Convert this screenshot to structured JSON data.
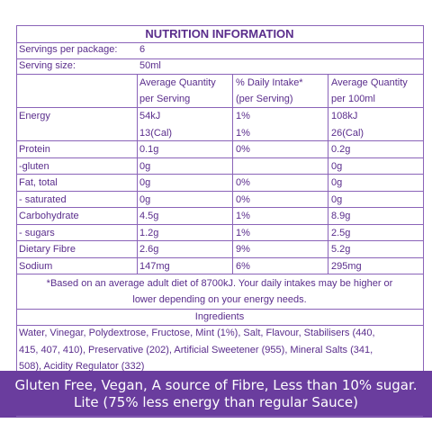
{
  "header": {
    "title": "NUTRITION INFORMATION"
  },
  "servings": [
    {
      "label": "Servings per package:",
      "value": "6"
    },
    {
      "label": "Serving size:",
      "value": "50ml"
    }
  ],
  "table": {
    "columns": [
      [
        "Average Quantity",
        "per Serving"
      ],
      [
        "% Daily Intake*",
        "(per Serving)"
      ],
      [
        "Average Quantity",
        "per 100ml"
      ]
    ],
    "rows": [
      {
        "label": "Energy",
        "cells": [
          [
            "54kJ",
            "13(Cal)"
          ],
          [
            "1%",
            "1%"
          ],
          [
            "108kJ",
            "26(Cal)"
          ]
        ]
      },
      {
        "label": "Protein",
        "cells": [
          [
            "0.1g"
          ],
          [
            "0%"
          ],
          [
            "0.2g"
          ]
        ]
      },
      {
        "label": "-gluten",
        "cells": [
          [
            "0g"
          ],
          [],
          [
            "0g"
          ]
        ]
      },
      {
        "label": "Fat, total",
        "cells": [
          [
            "0g"
          ],
          [
            "0%"
          ],
          [
            "0g"
          ]
        ]
      },
      {
        "label": "- saturated",
        "cells": [
          [
            "0g"
          ],
          [
            "0%"
          ],
          [
            "0g"
          ]
        ]
      },
      {
        "label": "Carbohydrate",
        "cells": [
          [
            "4.5g"
          ],
          [
            "1%"
          ],
          [
            "8.9g"
          ]
        ]
      },
      {
        "label": "- sugars",
        "cells": [
          [
            "1.2g"
          ],
          [
            "1%"
          ],
          [
            "2.5g"
          ]
        ]
      },
      {
        "label": "Dietary Fibre",
        "cells": [
          [
            "2.6g"
          ],
          [
            "9%"
          ],
          [
            "5.2g"
          ]
        ]
      },
      {
        "label": "Sodium",
        "cells": [
          [
            "147mg"
          ],
          [
            "6%"
          ],
          [
            "295mg"
          ]
        ]
      }
    ]
  },
  "footnote": [
    "*Based on an average adult diet of 8700kJ. Your daily intakes may be higher or",
    "lower depending on your energy needs."
  ],
  "ingredients": {
    "heading": "Ingredients",
    "lines": [
      "Water, Vinegar, Polydextrose, Fructose, Mint (1%), Salt, Flavour, Stabilisers (440,",
      "415, 407, 410), Preservative (202), Artificial Sweetener (955), Mineral Salts (341,",
      "508), Acidity Regulator (332)"
    ]
  },
  "banner": [
    "Gluten Free, Vegan, A source of Fibre, Less than 10% sugar.",
    "Lite (75% less energy than regular Sauce)"
  ]
}
